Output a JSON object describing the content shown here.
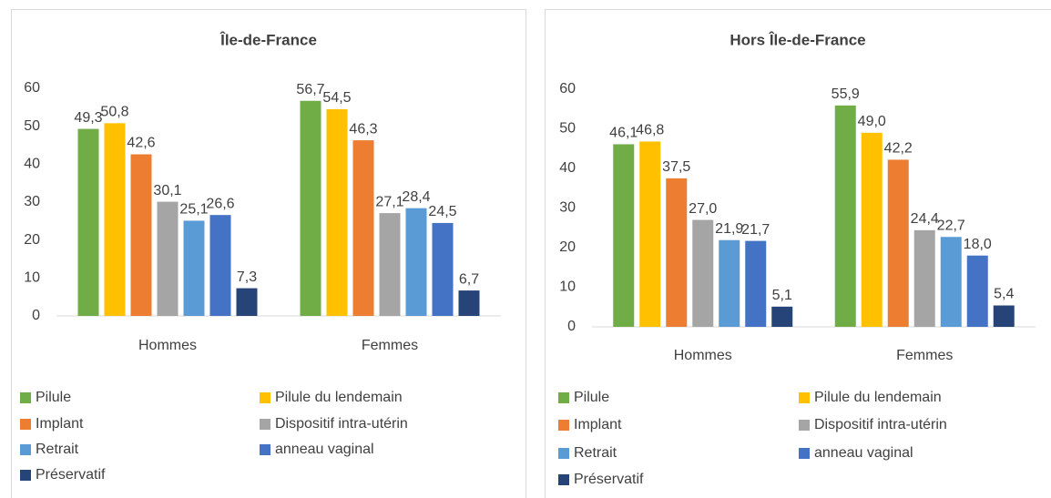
{
  "chart_data": [
    {
      "type": "bar",
      "title": "Île-de-France",
      "categories": [
        "Hommes",
        "Femmes"
      ],
      "ylim": [
        0,
        60
      ],
      "yticks": [
        0,
        10,
        20,
        30,
        40,
        50,
        60
      ],
      "series": [
        {
          "name": "Pilule",
          "color": "#70ad47",
          "values": [
            49.3,
            56.7
          ],
          "value_labels": [
            "49,3",
            "56,7"
          ]
        },
        {
          "name": "Pilule du lendemain",
          "color": "#ffc000",
          "values": [
            50.8,
            54.5
          ],
          "value_labels": [
            "50,8",
            "54,5"
          ]
        },
        {
          "name": "Implant",
          "color": "#ed7d31",
          "values": [
            42.6,
            46.3
          ],
          "value_labels": [
            "42,6",
            "46,3"
          ]
        },
        {
          "name": "Dispositif intra-utérin",
          "color": "#a5a5a5",
          "values": [
            30.1,
            27.1
          ],
          "value_labels": [
            "30,1",
            "27,1"
          ]
        },
        {
          "name": "Retrait",
          "color": "#5b9bd5",
          "values": [
            25.1,
            28.4
          ],
          "value_labels": [
            "25,1",
            "28,4"
          ]
        },
        {
          "name": "anneau vaginal",
          "color": "#4472c4",
          "values": [
            26.6,
            24.5
          ],
          "value_labels": [
            "26,6",
            "24,5"
          ]
        },
        {
          "name": "Préservatif",
          "color": "#264478",
          "values": [
            7.3,
            6.7
          ],
          "value_labels": [
            "7,3",
            "6,7"
          ]
        }
      ]
    },
    {
      "type": "bar",
      "title": "Hors Île-de-France",
      "categories": [
        "Hommes",
        "Femmes"
      ],
      "ylim": [
        0,
        60
      ],
      "yticks": [
        0,
        10,
        20,
        30,
        40,
        50,
        60
      ],
      "series": [
        {
          "name": "Pilule",
          "color": "#70ad47",
          "values": [
            46.1,
            55.9
          ],
          "value_labels": [
            "46,1",
            "55,9"
          ]
        },
        {
          "name": "Pilule du lendemain",
          "color": "#ffc000",
          "values": [
            46.8,
            49.0
          ],
          "value_labels": [
            "46,8",
            "49,0"
          ]
        },
        {
          "name": "Implant",
          "color": "#ed7d31",
          "values": [
            37.5,
            42.2
          ],
          "value_labels": [
            "37,5",
            "42,2"
          ]
        },
        {
          "name": "Dispositif intra-utérin",
          "color": "#a5a5a5",
          "values": [
            27.0,
            24.4
          ],
          "value_labels": [
            "27,0",
            "24,4"
          ]
        },
        {
          "name": "Retrait",
          "color": "#5b9bd5",
          "values": [
            21.9,
            22.7
          ],
          "value_labels": [
            "21,9",
            "22,7"
          ]
        },
        {
          "name": "anneau vaginal",
          "color": "#4472c4",
          "values": [
            21.7,
            18.0
          ],
          "value_labels": [
            "21,7",
            "18,0"
          ]
        },
        {
          "name": "Préservatif",
          "color": "#264478",
          "values": [
            5.1,
            5.4
          ],
          "value_labels": [
            "5,1",
            "5,4"
          ]
        }
      ]
    }
  ]
}
